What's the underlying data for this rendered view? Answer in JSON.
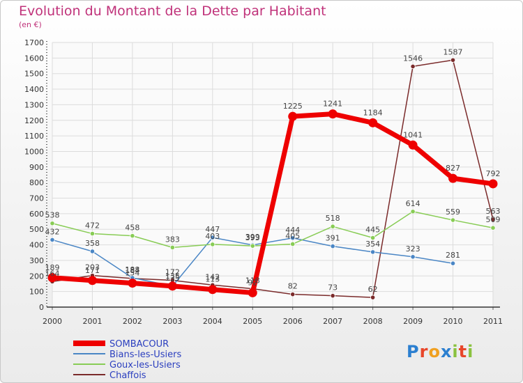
{
  "page": {
    "title": "Evolution du Montant de la Dette par Habitant",
    "subtitle": "(en €)",
    "logo_text": "Proxiti"
  },
  "chart_data": {
    "type": "line",
    "title": "Evolution du Montant de la Dette par Habitant",
    "subtitle": "(en €)",
    "xlabel": "",
    "ylabel": "",
    "x": [
      "2000",
      "2001",
      "2002",
      "2003",
      "2004",
      "2005",
      "2006",
      "2007",
      "2008",
      "2009",
      "2010",
      "2011"
    ],
    "ylim": [
      0,
      1700
    ],
    "yticks": [
      0,
      100,
      200,
      300,
      400,
      500,
      600,
      700,
      800,
      900,
      1000,
      1100,
      1200,
      1300,
      1400,
      1500,
      1600,
      1700
    ],
    "grid": true,
    "legend_position": "bottom-left",
    "series": [
      {
        "name": "SOMBACOUR",
        "color": "#ee0000",
        "values": [
          189,
          171,
          154,
          135,
          113,
          92,
          1225,
          1241,
          1184,
          1041,
          827,
          792
        ]
      },
      {
        "name": "Bians-les-Usiers",
        "color": "#4a86c5",
        "values": [
          432,
          358,
          188,
          135,
          447,
          399,
          444,
          391,
          354,
          323,
          281,
          null
        ]
      },
      {
        "name": "Goux-les-Usiers",
        "color": "#88cc55",
        "values": [
          538,
          472,
          458,
          383,
          403,
          393,
          405,
          518,
          445,
          614,
          559,
          509
        ]
      },
      {
        "name": "Chaffois",
        "color": "#7a2a2a",
        "values": [
          164,
          203,
          184,
          172,
          142,
          118,
          82,
          73,
          62,
          1546,
          1587,
          563
        ]
      }
    ]
  }
}
